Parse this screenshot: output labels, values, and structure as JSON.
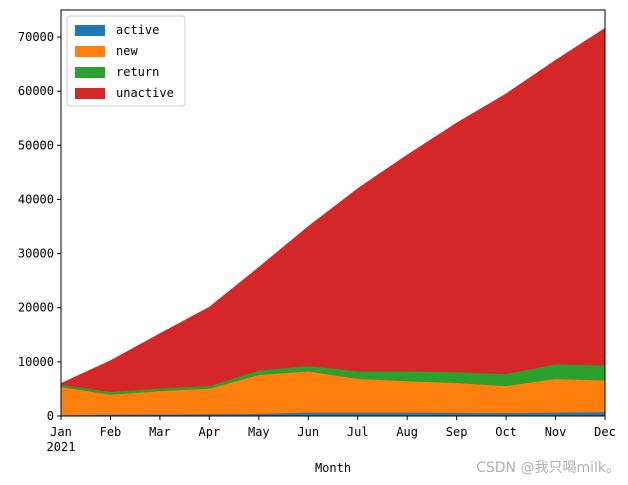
{
  "chart_data": {
    "type": "area",
    "stacked": true,
    "categories": [
      "Jan\n2021",
      "Feb",
      "Mar",
      "Apr",
      "May",
      "Jun",
      "Jul",
      "Aug",
      "Sep",
      "Oct",
      "Nov",
      "Dec"
    ],
    "series": [
      {
        "name": "active",
        "color": "#1f77b4",
        "values": [
          200,
          300,
          350,
          400,
          450,
          700,
          700,
          700,
          650,
          600,
          700,
          800
        ]
      },
      {
        "name": "new",
        "color": "#ff7f0e",
        "values": [
          5200,
          3700,
          4300,
          4700,
          7200,
          7600,
          6200,
          5800,
          5500,
          5000,
          6200,
          5800
        ]
      },
      {
        "name": "return",
        "color": "#2ca02c",
        "values": [
          400,
          500,
          500,
          500,
          800,
          1000,
          1400,
          1800,
          2000,
          2200,
          2700,
          2800
        ]
      },
      {
        "name": "unactive",
        "color": "#d62728",
        "values": [
          200,
          5700,
          10050,
          14500,
          19000,
          25700,
          33700,
          39900,
          45950,
          51700,
          56100,
          62200
        ]
      }
    ],
    "xlabel": "Month",
    "ylabel": "",
    "ylim": [
      0,
      75000
    ],
    "yticks": [
      0,
      10000,
      20000,
      30000,
      40000,
      50000,
      60000,
      70000
    ],
    "grid": false,
    "legend": "top-left"
  },
  "watermark": "CSDN @我只喝milk。"
}
